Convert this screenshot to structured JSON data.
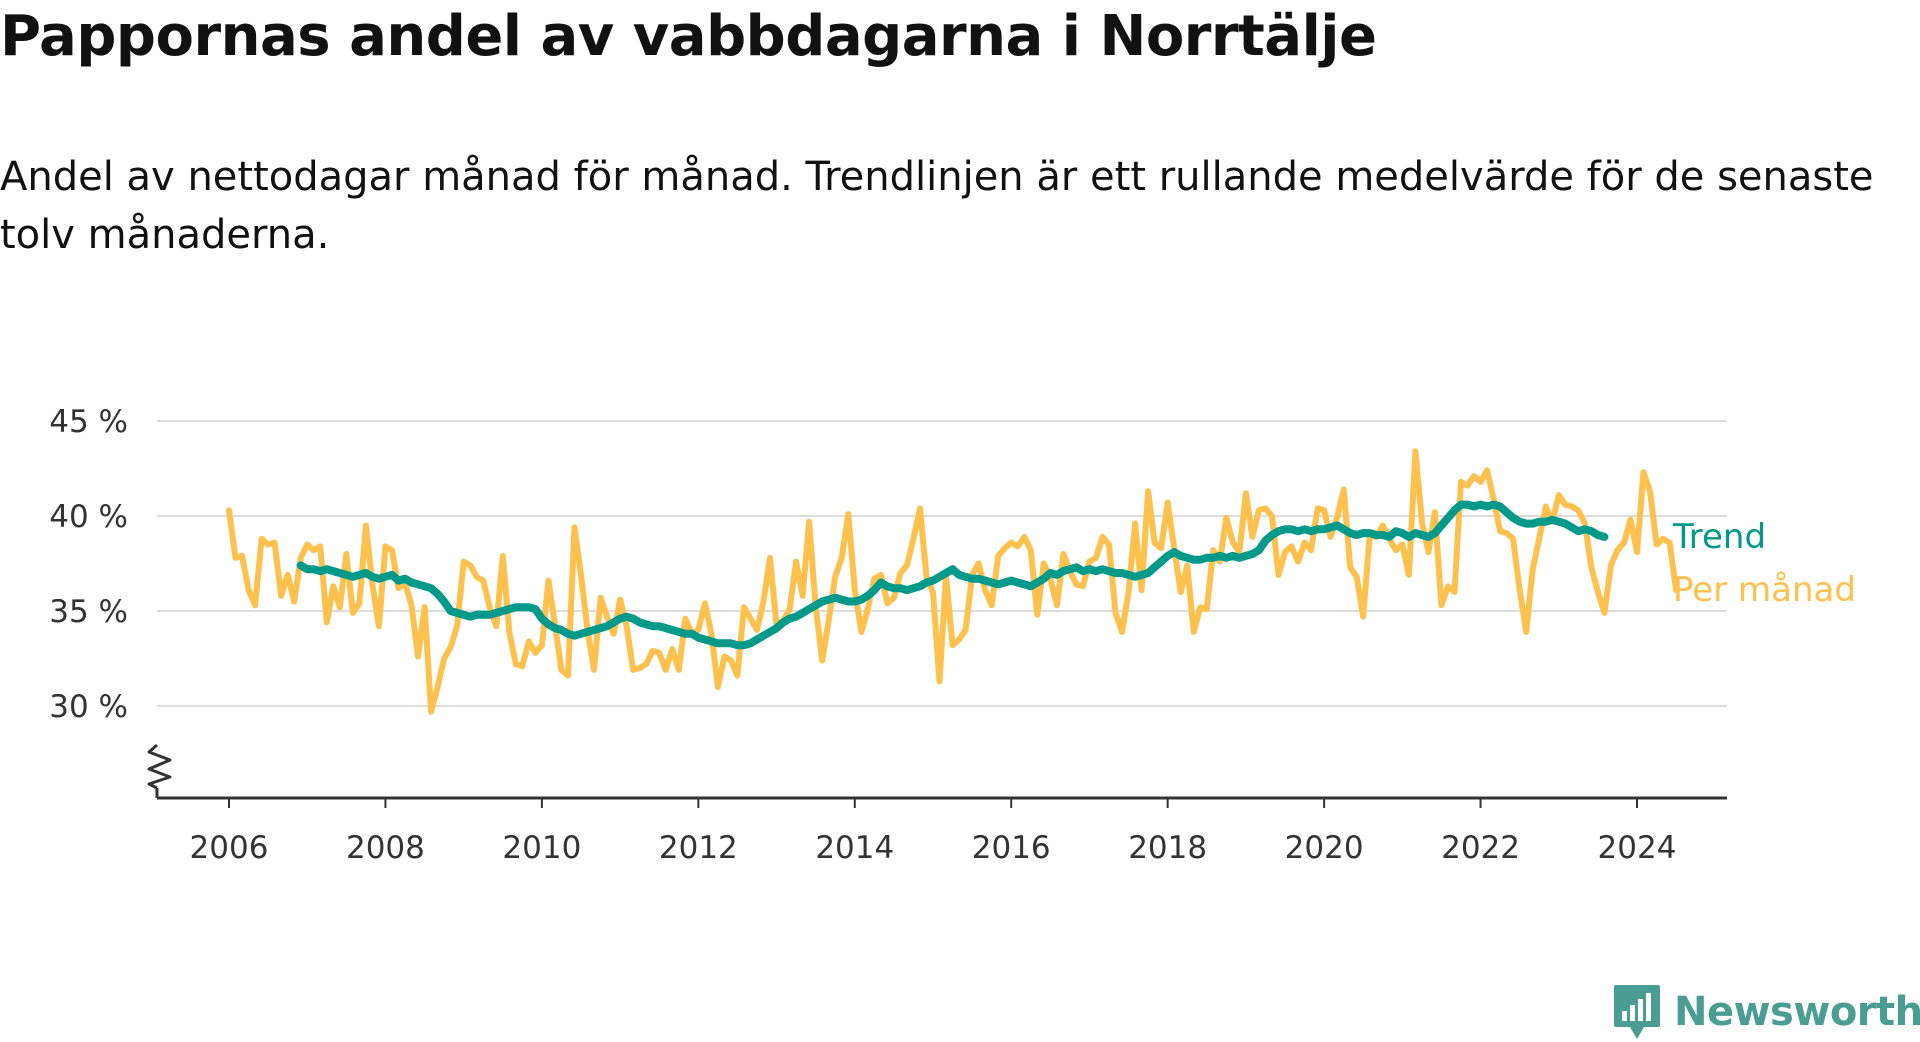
{
  "title": "Pappornas andel av vabbdagarna i Norrtälje",
  "subtitle": "Andel av nettodagar månad för månad. Trendlinjen är ett rullande medelvärde för de senaste tolv månaderna.",
  "logo": {
    "text": "Newsworthy",
    "icon": "bar-chart-badge-icon"
  },
  "colors": {
    "monthly": "#fec14e",
    "trend": "#00998a",
    "grid": "#dddddd",
    "axis": "#333333"
  },
  "chart_data": {
    "type": "line",
    "title": "Pappornas andel av vabbdagarna i Norrtälje",
    "xlabel": "",
    "ylabel": "",
    "xlim": [
      2005.5,
      2025.7
    ],
    "ylim": [
      25,
      46
    ],
    "axis_break": true,
    "x_ticks": [
      2006,
      2008,
      2010,
      2012,
      2014,
      2016,
      2018,
      2020,
      2022,
      2024
    ],
    "x_tick_labels": [
      "2006",
      "2008",
      "2010",
      "2012",
      "2014",
      "2016",
      "2018",
      "2020",
      "2022",
      "2024"
    ],
    "y_ticks": [
      30,
      35,
      40,
      45
    ],
    "y_tick_labels": [
      "30 %",
      "35 %",
      "40 %",
      "45 %"
    ],
    "grid": true,
    "legend": "inline labels at line ends",
    "series": [
      {
        "name": "Per månad",
        "color": "#fec14e",
        "start": "2006-01",
        "frequency": "monthly",
        "values": [
          40.3,
          37.8,
          37.9,
          36.1,
          35.3,
          38.8,
          38.5,
          38.6,
          35.8,
          36.9,
          35.5,
          37.8,
          38.5,
          38.2,
          38.4,
          34.4,
          36.3,
          35.2,
          38.0,
          34.9,
          35.4,
          39.5,
          36.4,
          34.2,
          38.4,
          38.2,
          36.2,
          36.5,
          35.3,
          32.6,
          35.2,
          29.7,
          31.0,
          32.5,
          33.1,
          34.2,
          37.6,
          37.4,
          36.8,
          36.6,
          35.2,
          34.2,
          37.9,
          33.9,
          32.2,
          32.1,
          33.4,
          32.8,
          33.2,
          36.6,
          34.3,
          31.9,
          31.6,
          39.4,
          36.9,
          34.0,
          31.9,
          35.7,
          34.7,
          33.8,
          35.6,
          34.2,
          31.9,
          32.0,
          32.2,
          32.9,
          32.8,
          31.9,
          33.0,
          31.9,
          34.6,
          33.8,
          34.0,
          35.4,
          33.8,
          31.0,
          32.6,
          32.4,
          31.6,
          35.2,
          34.6,
          34.0,
          35.5,
          37.8,
          34.2,
          34.5,
          35.1,
          37.6,
          35.8,
          39.7,
          35.2,
          32.4,
          34.5,
          36.8,
          37.8,
          40.1,
          36.1,
          33.9,
          35.1,
          36.7,
          36.9,
          35.4,
          35.7,
          37.0,
          37.4,
          38.8,
          40.4,
          36.8,
          36.0,
          31.3,
          36.8,
          33.2,
          33.5,
          34.0,
          36.9,
          37.5,
          36.1,
          35.3,
          37.9,
          38.3,
          38.6,
          38.4,
          38.9,
          38.2,
          34.8,
          37.5,
          36.7,
          35.3,
          38.0,
          37.1,
          36.4,
          36.3,
          37.6,
          37.8,
          38.9,
          38.5,
          34.9,
          33.9,
          36.0,
          39.6,
          36.1,
          41.3,
          38.6,
          38.3,
          40.7,
          38.3,
          36.0,
          37.4,
          33.9,
          35.2,
          35.1,
          38.2,
          37.6,
          39.9,
          38.6,
          38.1,
          41.2,
          38.9,
          40.3,
          40.4,
          40.0,
          36.9,
          38.1,
          38.4,
          37.6,
          38.6,
          38.2,
          40.4,
          40.3,
          38.9,
          39.9,
          41.4,
          37.3,
          36.8,
          34.7,
          39.0,
          38.9,
          39.5,
          38.8,
          38.2,
          38.5,
          36.9,
          43.4,
          39.7,
          38.1,
          40.2,
          35.3,
          36.3,
          36.0,
          41.8,
          41.6,
          42.1,
          41.8,
          42.4,
          40.9,
          39.2,
          39.1,
          38.8,
          36.1,
          33.9,
          37.2,
          38.8,
          40.5,
          39.7,
          41.1,
          40.6,
          40.5,
          40.3,
          39.6,
          37.3,
          36.0,
          34.9,
          37.4,
          38.2,
          38.6,
          39.8,
          38.1,
          42.3,
          41.3,
          38.5,
          38.8,
          38.6,
          36.1
        ]
      },
      {
        "name": "Trend",
        "color": "#00998a",
        "start": "2006-12",
        "frequency": "monthly",
        "values": [
          37.4,
          37.2,
          37.2,
          37.1,
          37.2,
          37.1,
          37.0,
          36.9,
          36.8,
          36.9,
          37.0,
          36.8,
          36.7,
          36.8,
          36.9,
          36.6,
          36.7,
          36.5,
          36.4,
          36.3,
          36.2,
          35.9,
          35.5,
          35.0,
          34.9,
          34.8,
          34.7,
          34.8,
          34.8,
          34.8,
          34.9,
          35.0,
          35.1,
          35.2,
          35.2,
          35.2,
          35.1,
          34.6,
          34.3,
          34.1,
          34.0,
          33.8,
          33.7,
          33.8,
          33.9,
          34.0,
          34.1,
          34.2,
          34.4,
          34.6,
          34.7,
          34.6,
          34.4,
          34.3,
          34.2,
          34.2,
          34.1,
          34.0,
          33.9,
          33.8,
          33.8,
          33.6,
          33.5,
          33.4,
          33.3,
          33.3,
          33.3,
          33.2,
          33.2,
          33.3,
          33.5,
          33.7,
          33.9,
          34.1,
          34.4,
          34.6,
          34.7,
          34.9,
          35.1,
          35.3,
          35.5,
          35.6,
          35.7,
          35.6,
          35.5,
          35.5,
          35.6,
          35.8,
          36.1,
          36.5,
          36.3,
          36.2,
          36.2,
          36.1,
          36.2,
          36.3,
          36.5,
          36.6,
          36.8,
          37.0,
          37.2,
          36.9,
          36.8,
          36.7,
          36.7,
          36.6,
          36.5,
          36.4,
          36.5,
          36.6,
          36.5,
          36.4,
          36.3,
          36.5,
          36.7,
          37.0,
          36.9,
          37.1,
          37.2,
          37.3,
          37.1,
          37.2,
          37.1,
          37.2,
          37.1,
          37.0,
          37.0,
          36.9,
          36.8,
          36.9,
          37.0,
          37.3,
          37.6,
          37.9,
          38.1,
          37.9,
          37.8,
          37.7,
          37.7,
          37.8,
          37.8,
          37.9,
          37.8,
          37.9,
          37.8,
          37.9,
          38.0,
          38.2,
          38.7,
          39.0,
          39.2,
          39.3,
          39.3,
          39.2,
          39.3,
          39.2,
          39.3,
          39.3,
          39.4,
          39.5,
          39.3,
          39.1,
          39.0,
          39.1,
          39.1,
          39.0,
          39.0,
          38.9,
          39.2,
          39.1,
          38.9,
          39.1,
          39.0,
          38.9,
          39.1,
          39.5,
          39.9,
          40.3,
          40.6,
          40.6,
          40.5,
          40.6,
          40.5,
          40.6,
          40.5,
          40.2,
          39.9,
          39.7,
          39.6,
          39.6,
          39.7,
          39.7,
          39.8,
          39.7,
          39.6,
          39.4,
          39.2,
          39.3,
          39.2,
          39.0,
          38.9
        ]
      }
    ]
  }
}
